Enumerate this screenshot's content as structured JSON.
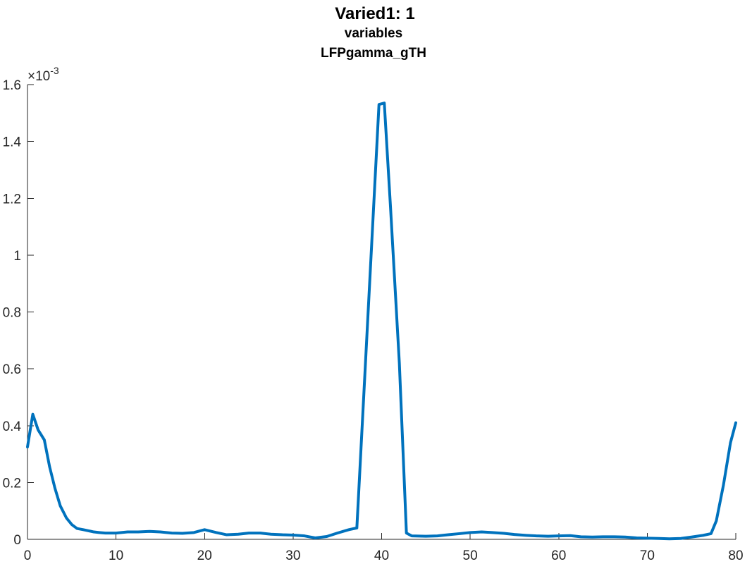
{
  "chart_data": {
    "type": "line",
    "title": "Varied1: 1",
    "subtitle_lines": [
      "variables",
      "LFPgamma_gTH"
    ],
    "xlabel": "",
    "ylabel": "",
    "xlim": [
      0,
      80
    ],
    "ylim": [
      0,
      0.0016
    ],
    "x_ticks": [
      0,
      10,
      20,
      30,
      40,
      50,
      60,
      70,
      80
    ],
    "x_tick_labels": [
      "0",
      "10",
      "20",
      "30",
      "40",
      "50",
      "60",
      "70",
      "80"
    ],
    "y_ticks": [
      0,
      0.0002,
      0.0004,
      0.0006,
      0.0008,
      0.001,
      0.0012,
      0.0014,
      0.0016
    ],
    "y_tick_labels": [
      "0",
      "0.2",
      "0.4",
      "0.6",
      "0.8",
      "1",
      "1.2",
      "1.4",
      "1.6"
    ],
    "y_exponent_base": "×10",
    "y_exponent_power": "-3",
    "y_scale": 1000,
    "grid": false,
    "legend": "none",
    "line_color": "#0072BD",
    "series": [
      {
        "x": [
          0,
          0.6,
          1.2,
          1.9,
          2.5,
          3.1,
          3.7,
          4.4,
          5.0,
          5.6,
          6.3,
          6.9,
          7.5,
          8.1,
          8.8,
          9.4,
          10.0,
          11.3,
          12.5,
          13.8,
          15.0,
          16.3,
          17.5,
          18.8,
          20.0,
          21.3,
          22.5,
          23.8,
          25.0,
          26.3,
          27.5,
          28.8,
          30.0,
          31.3,
          32.5,
          33.8,
          35.0,
          36.3,
          37.2,
          39.7,
          40.3,
          41.0,
          42.0,
          42.8,
          43.4,
          45.0,
          46.3,
          47.5,
          48.8,
          50.0,
          51.3,
          52.5,
          53.8,
          55.0,
          56.3,
          57.5,
          58.8,
          60.0,
          61.3,
          62.5,
          63.8,
          65.0,
          66.3,
          67.5,
          68.8,
          70.0,
          71.3,
          72.5,
          73.8,
          75.0,
          76.3,
          77.2,
          77.8,
          78.6,
          79.4,
          80.0
        ],
        "y": [
          0.000325,
          0.00044,
          0.000385,
          0.00035,
          0.000255,
          0.00018,
          0.000118,
          7.5e-05,
          5.2e-05,
          3.8e-05,
          3.4e-05,
          3e-05,
          2.6e-05,
          2.4e-05,
          2.2e-05,
          2.2e-05,
          2.2e-05,
          2.6e-05,
          2.6e-05,
          2.8e-05,
          2.6e-05,
          2.2e-05,
          2.1e-05,
          2.4e-05,
          3.4e-05,
          2.4e-05,
          1.6e-05,
          1.8e-05,
          2.2e-05,
          2.2e-05,
          1.8e-05,
          1.6e-05,
          1.5e-05,
          1.2e-05,
          5e-06,
          1e-05,
          2.2e-05,
          3.4e-05,
          4e-05,
          0.00153,
          0.001535,
          0.00117,
          0.00062,
          2.2e-05,
          1.2e-05,
          1.1e-05,
          1.2e-05,
          1.6e-05,
          2e-05,
          2.4e-05,
          2.6e-05,
          2.4e-05,
          2.1e-05,
          1.7e-05,
          1.4e-05,
          1.2e-05,
          1.1e-05,
          1.2e-05,
          1.3e-05,
          9e-06,
          8e-06,
          9e-06,
          9e-06,
          8e-06,
          5e-06,
          4e-06,
          3e-06,
          2e-06,
          3e-06,
          8e-06,
          1.4e-05,
          2e-05,
          6.5e-05,
          0.00019,
          0.00034,
          0.00041
        ]
      }
    ]
  }
}
